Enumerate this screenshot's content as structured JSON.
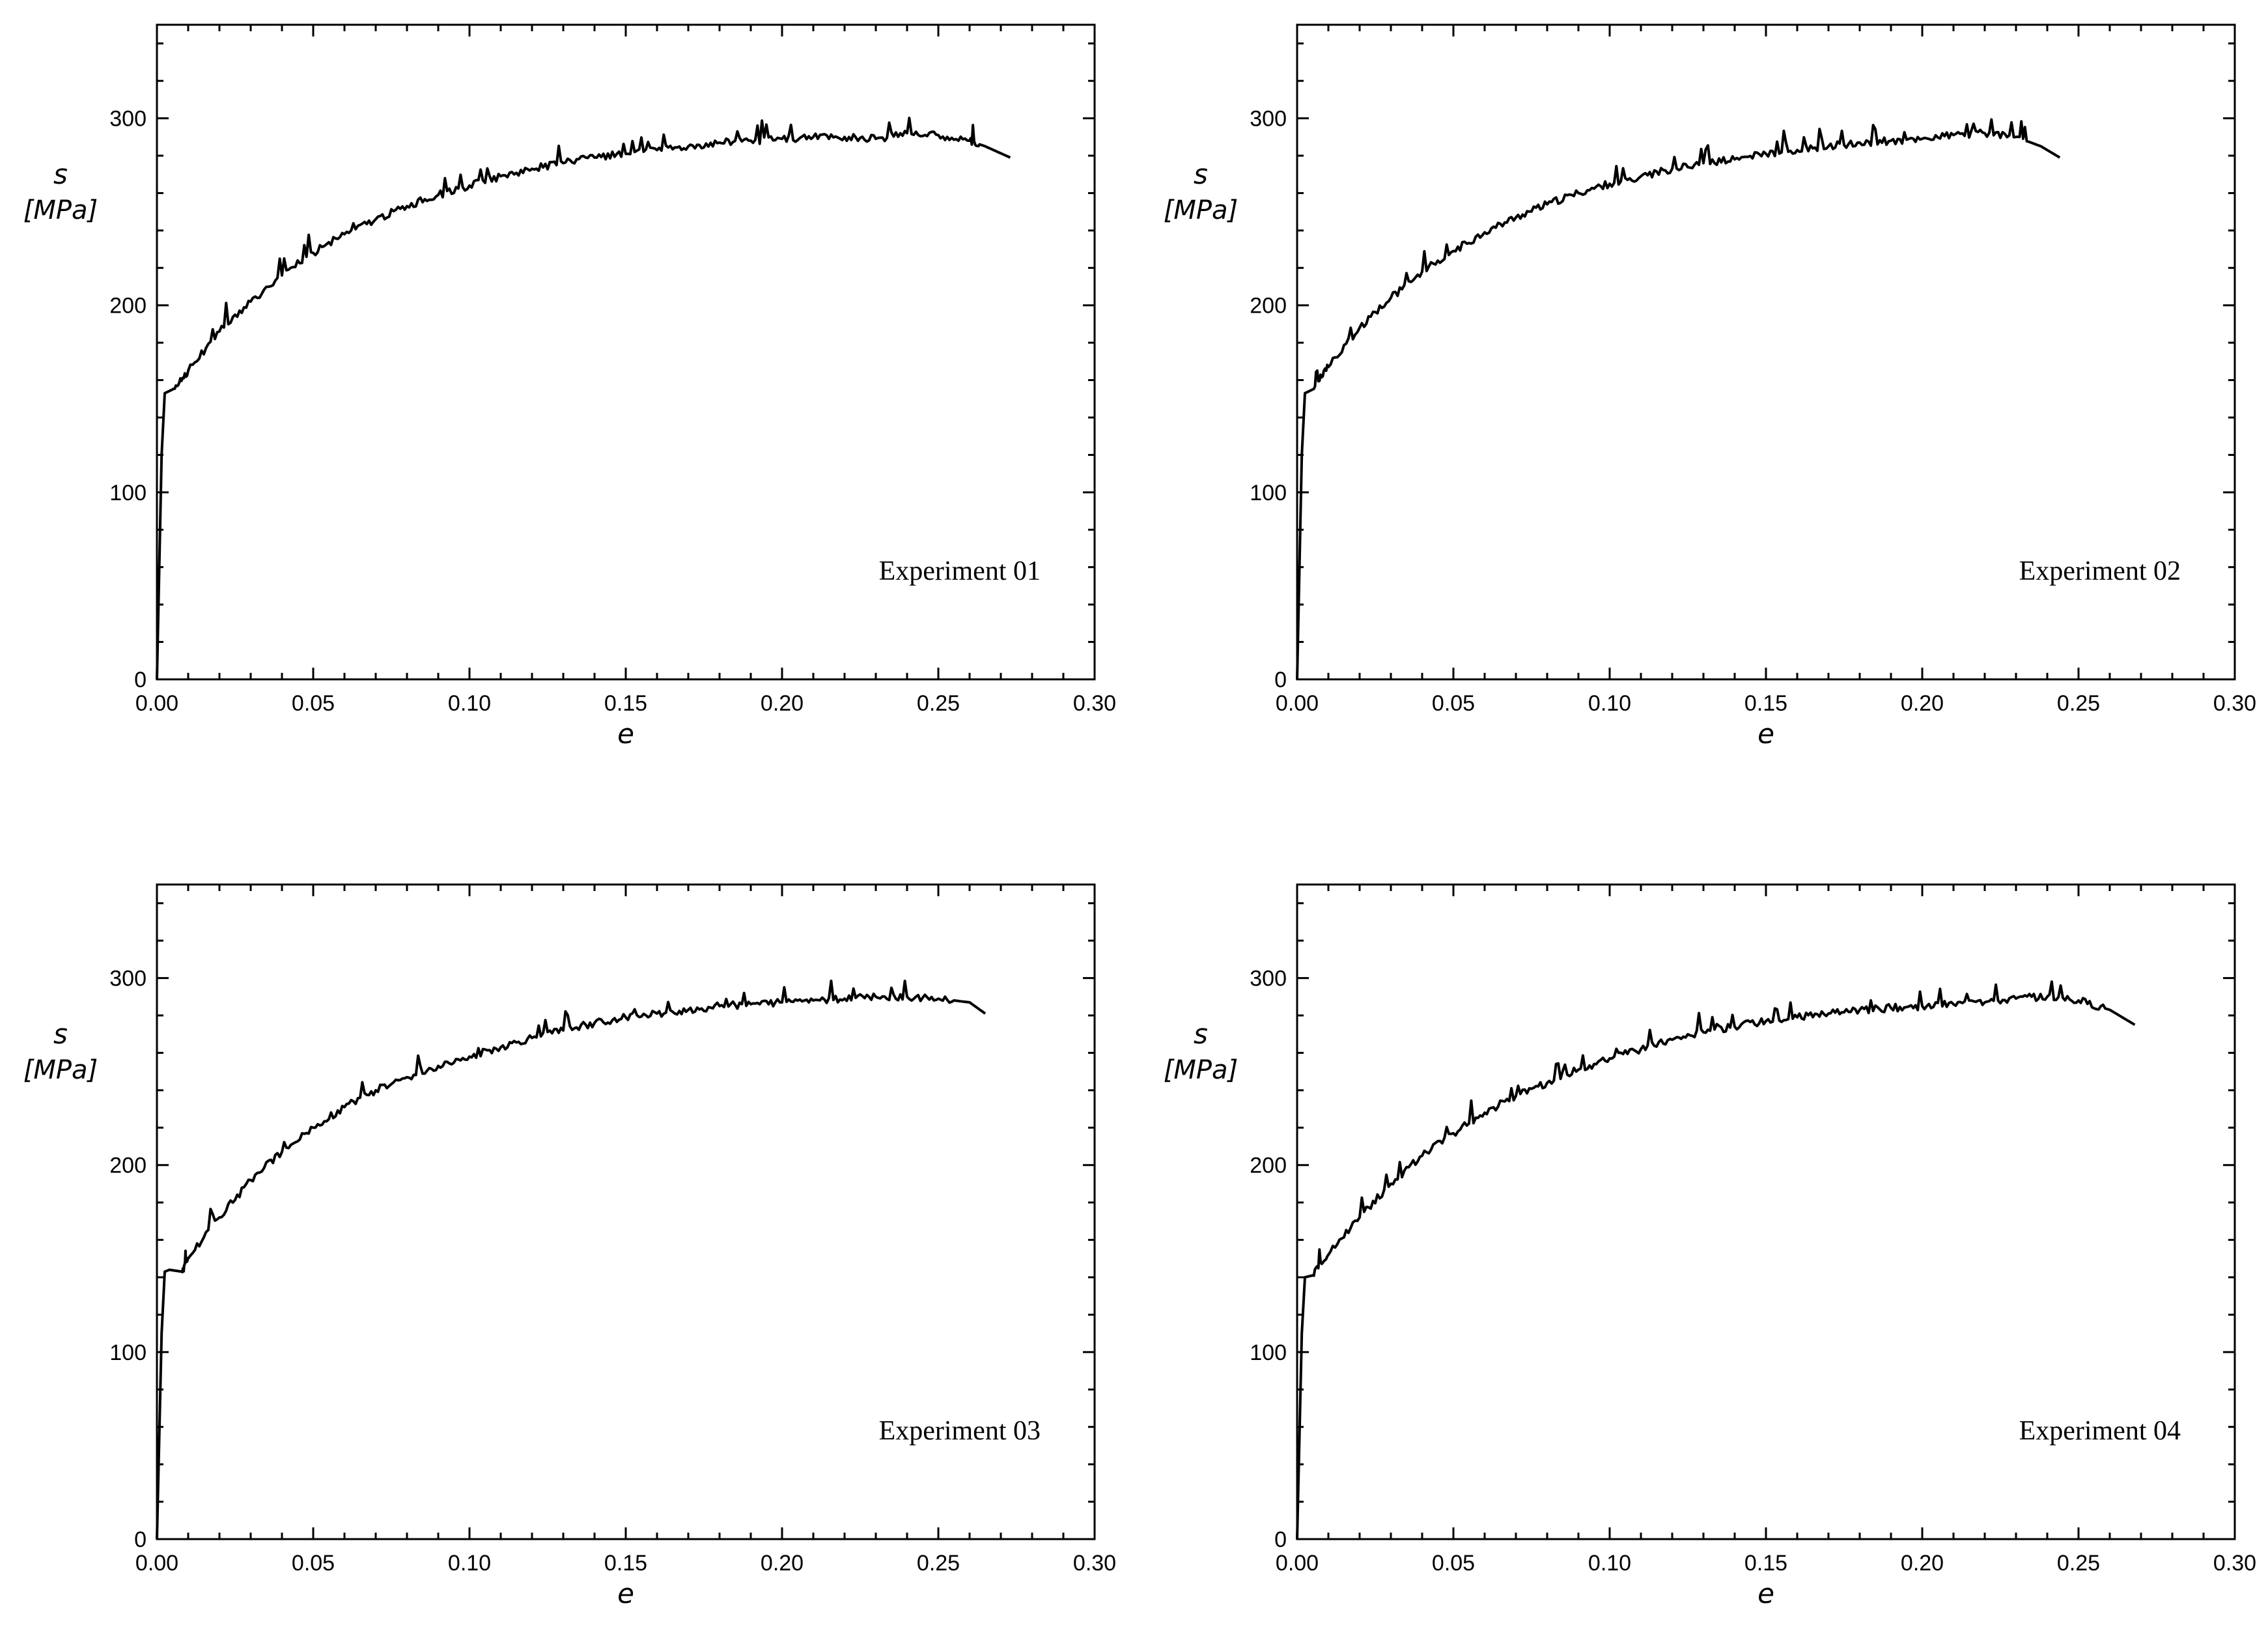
{
  "chart_data": [
    {
      "type": "line",
      "xlabel": "e",
      "ylabel": "s",
      "yunit": "[MPa]",
      "annotation": "Experiment 01",
      "xlim": [
        0,
        0.3
      ],
      "ylim": [
        0,
        350
      ],
      "xticks": [
        "0.00",
        "0.05",
        "0.10",
        "0.15",
        "0.20",
        "0.25",
        "0.30"
      ],
      "yticks": [
        "0",
        "100",
        "200",
        "300"
      ],
      "grid": false,
      "series": [
        {
          "x": [
            0,
            0.0015,
            0.0025,
            0.005,
            0.01,
            0.02,
            0.03,
            0.04,
            0.05,
            0.06,
            0.07,
            0.08,
            0.09,
            0.1,
            0.11,
            0.12,
            0.13,
            0.14,
            0.15,
            0.16,
            0.17,
            0.18,
            0.19,
            0.2,
            0.21,
            0.22,
            0.23,
            0.24,
            0.25,
            0.26,
            0.265,
            0.273
          ],
          "y": [
            0,
            120,
            153,
            155,
            165,
            186,
            202,
            216,
            228,
            238,
            246,
            253,
            259,
            264,
            269,
            273,
            276,
            279,
            281,
            283,
            285,
            287,
            288,
            289,
            290,
            290,
            289,
            292,
            291,
            288,
            285,
            279
          ]
        }
      ]
    },
    {
      "type": "line",
      "xlabel": "e",
      "ylabel": "s",
      "yunit": "[MPa]",
      "annotation": "Experiment 02",
      "xlim": [
        0,
        0.3
      ],
      "ylim": [
        0,
        350
      ],
      "xticks": [
        "0.00",
        "0.05",
        "0.10",
        "0.15",
        "0.20",
        "0.25",
        "0.30"
      ],
      "yticks": [
        "0",
        "100",
        "200",
        "300"
      ],
      "grid": false,
      "series": [
        {
          "x": [
            0,
            0.0015,
            0.0025,
            0.005,
            0.01,
            0.02,
            0.03,
            0.04,
            0.05,
            0.06,
            0.07,
            0.08,
            0.09,
            0.1,
            0.11,
            0.12,
            0.13,
            0.14,
            0.15,
            0.16,
            0.17,
            0.18,
            0.19,
            0.2,
            0.21,
            0.22,
            0.23,
            0.238,
            0.244
          ],
          "y": [
            0,
            120,
            153,
            155,
            167,
            188,
            204,
            218,
            229,
            239,
            247,
            254,
            260,
            265,
            269,
            273,
            276,
            278,
            281,
            283,
            285,
            287,
            288,
            289,
            291,
            292,
            290,
            285,
            279
          ]
        }
      ]
    },
    {
      "type": "line",
      "xlabel": "e",
      "ylabel": "s",
      "yunit": "[MPa]",
      "annotation": "Experiment 03",
      "xlim": [
        0,
        0.3
      ],
      "ylim": [
        0,
        350
      ],
      "xticks": [
        "0.00",
        "0.05",
        "0.10",
        "0.15",
        "0.20",
        "0.25",
        "0.30"
      ],
      "yticks": [
        "0",
        "100",
        "200",
        "300"
      ],
      "grid": false,
      "series": [
        {
          "x": [
            0,
            0.0015,
            0.0025,
            0.004,
            0.008,
            0.01,
            0.02,
            0.03,
            0.04,
            0.05,
            0.06,
            0.07,
            0.08,
            0.09,
            0.1,
            0.11,
            0.12,
            0.13,
            0.14,
            0.15,
            0.16,
            0.17,
            0.18,
            0.19,
            0.2,
            0.21,
            0.22,
            0.23,
            0.24,
            0.25,
            0.26,
            0.265
          ],
          "y": [
            0,
            110,
            143,
            144,
            143,
            150,
            172,
            192,
            207,
            220,
            231,
            240,
            247,
            253,
            258,
            263,
            268,
            272,
            276,
            279,
            281,
            283,
            285,
            286,
            287,
            288,
            289,
            290,
            290,
            289,
            287,
            281
          ]
        }
      ]
    },
    {
      "type": "line",
      "xlabel": "e",
      "ylabel": "s",
      "yunit": "[MPa]",
      "annotation": "Experiment 04",
      "xlim": [
        0,
        0.3
      ],
      "ylim": [
        0,
        350
      ],
      "xticks": [
        "0.00",
        "0.05",
        "0.10",
        "0.15",
        "0.20",
        "0.25",
        "0.30"
      ],
      "yticks": [
        "0",
        "100",
        "200",
        "300"
      ],
      "grid": false,
      "series": [
        {
          "x": [
            0,
            0.0015,
            0.0025,
            0.005,
            0.01,
            0.02,
            0.03,
            0.04,
            0.05,
            0.06,
            0.07,
            0.08,
            0.09,
            0.1,
            0.11,
            0.12,
            0.13,
            0.14,
            0.15,
            0.16,
            0.17,
            0.18,
            0.19,
            0.2,
            0.21,
            0.22,
            0.23,
            0.24,
            0.25,
            0.26,
            0.268
          ],
          "y": [
            0,
            110,
            140,
            141,
            152,
            172,
            190,
            205,
            217,
            228,
            237,
            244,
            251,
            257,
            262,
            267,
            271,
            274,
            277,
            279,
            281,
            283,
            284,
            285,
            286,
            287,
            289,
            290,
            288,
            283,
            275
          ]
        }
      ]
    }
  ]
}
